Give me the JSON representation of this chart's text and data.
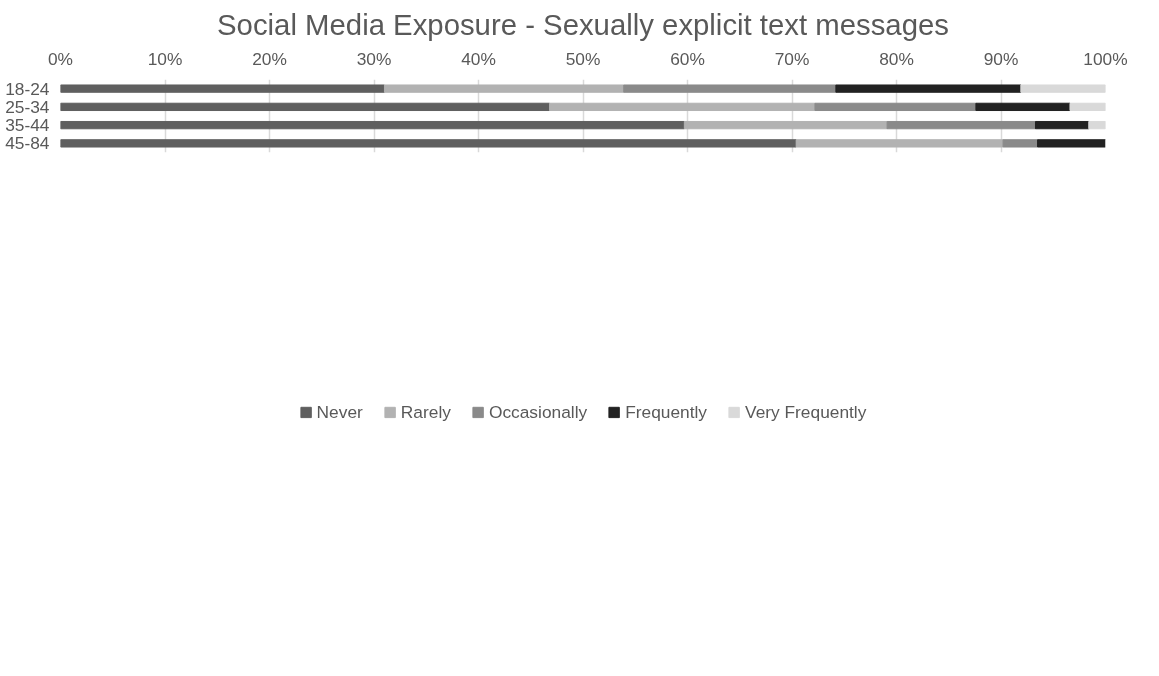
{
  "chart_data": {
    "type": "bar",
    "orientation": "horizontal",
    "stacked": true,
    "title": "Social Media Exposure - Sexually explicit text messages",
    "categories": [
      "18-24",
      "25-34",
      "35-44",
      "45-84"
    ],
    "series": [
      {
        "name": "Never",
        "color": "#5f5f5f",
        "values": [
          31.0,
          46.8,
          59.7,
          70.4
        ]
      },
      {
        "name": "Rarely",
        "color": "#b2b2b2",
        "values": [
          22.9,
          25.4,
          19.4,
          19.8
        ]
      },
      {
        "name": "Occasionally",
        "color": "#8a8a8a",
        "values": [
          20.3,
          15.4,
          14.2,
          3.3
        ]
      },
      {
        "name": "Frequently",
        "color": "#222222",
        "values": [
          17.7,
          9.0,
          5.1,
          6.5
        ]
      },
      {
        "name": "Very Frequently",
        "color": "#d9d9d9",
        "values": [
          8.1,
          3.4,
          1.6,
          0
        ]
      }
    ],
    "xlim": [
      0,
      100
    ],
    "xticks": [
      {
        "value": 0,
        "label": "0%"
      },
      {
        "value": 10,
        "label": "10%"
      },
      {
        "value": 20,
        "label": "20%"
      },
      {
        "value": 30,
        "label": "30%"
      },
      {
        "value": 40,
        "label": "40%"
      },
      {
        "value": 50,
        "label": "50%"
      },
      {
        "value": 60,
        "label": "60%"
      },
      {
        "value": 70,
        "label": "70%"
      },
      {
        "value": 80,
        "label": "80%"
      },
      {
        "value": 90,
        "label": "90%"
      },
      {
        "value": 100,
        "label": "100%"
      }
    ],
    "grid": "x",
    "legend": "bottom"
  }
}
